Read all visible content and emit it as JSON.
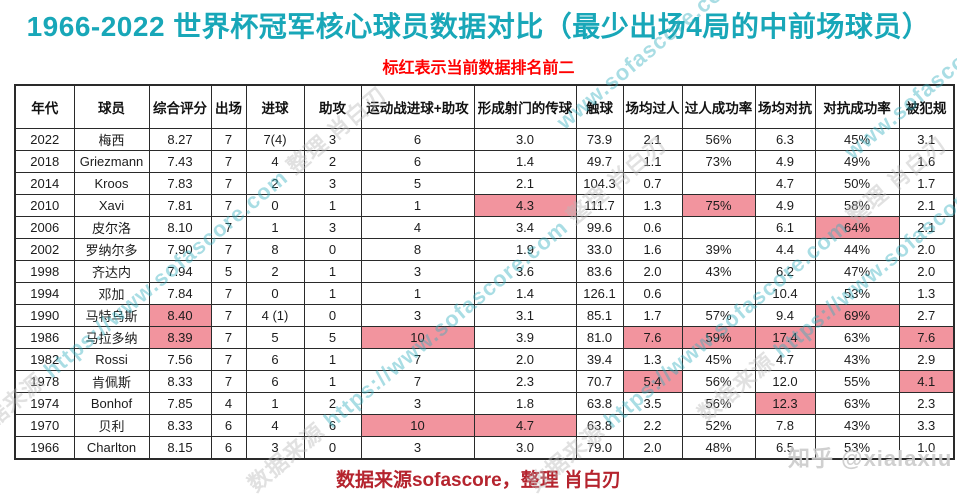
{
  "page": {
    "title": "1966-2022 世界杯冠军核心球员数据对比（最少出场4局的中前场球员）",
    "subtitle": "标红表示当前数据排名前二",
    "footer": "数据来源sofascore，整理 肖白刃"
  },
  "colors": {
    "title_teal": "#18a7b8",
    "subtitle_red": "#ff0000",
    "footer_red": "#b5242e",
    "highlight_pink": "#f2949e",
    "border_dark": "#2a2a2a",
    "watermark_teal": "#35b0bf",
    "watermark_gray": "#b9b9b9"
  },
  "watermark": {
    "site": "www.sofascore.com",
    "band_prefix": "数据来源",
    "band_url": "https://www.sofascore.com",
    "band_middle": "整理",
    "band_author": "肖白刃",
    "zhihu": "知乎 @xialaxiu"
  },
  "table": {
    "headers": [
      "年代",
      "球员",
      "综合评分",
      "出场",
      "进球",
      "助攻",
      "运动战进球+助攻",
      "形成射门的传球",
      "触球",
      "场均过人",
      "过人成功率",
      "场均对抗",
      "对抗成功率",
      "被犯规"
    ],
    "rows": [
      {
        "cells": [
          "2022",
          "梅西",
          "8.27",
          "7",
          "7(4)",
          "3",
          "6",
          "3.0",
          "73.9",
          "2.1",
          "56%",
          "6.3",
          "45%",
          "3.1"
        ],
        "highlights": []
      },
      {
        "cells": [
          "2018",
          "Griezmann",
          "7.43",
          "7",
          "4",
          "2",
          "6",
          "1.4",
          "49.7",
          "1.1",
          "73%",
          "4.9",
          "49%",
          "1.6"
        ],
        "highlights": []
      },
      {
        "cells": [
          "2014",
          "Kroos",
          "7.83",
          "7",
          "2",
          "3",
          "5",
          "2.1",
          "104.3",
          "0.7",
          "",
          "4.7",
          "50%",
          "1.7"
        ],
        "highlights": []
      },
      {
        "cells": [
          "2010",
          "Xavi",
          "7.81",
          "7",
          "0",
          "1",
          "1",
          "4.3",
          "111.7",
          "1.3",
          "75%",
          "4.9",
          "58%",
          "2.1"
        ],
        "highlights": [
          7,
          10
        ]
      },
      {
        "cells": [
          "2006",
          "皮尔洛",
          "8.10",
          "7",
          "1",
          "3",
          "4",
          "3.4",
          "99.6",
          "0.6",
          "",
          "6.1",
          "64%",
          "2.1"
        ],
        "highlights": [
          12
        ]
      },
      {
        "cells": [
          "2002",
          "罗纳尔多",
          "7.90",
          "7",
          "8",
          "0",
          "8",
          "1.9",
          "33.0",
          "1.6",
          "39%",
          "4.4",
          "44%",
          "2.0"
        ],
        "highlights": []
      },
      {
        "cells": [
          "1998",
          "齐达内",
          "7.94",
          "5",
          "2",
          "1",
          "3",
          "3.6",
          "83.6",
          "2.0",
          "43%",
          "6.2",
          "47%",
          "2.0"
        ],
        "highlights": []
      },
      {
        "cells": [
          "1994",
          "邓加",
          "7.84",
          "7",
          "0",
          "1",
          "1",
          "1.4",
          "126.1",
          "0.6",
          "",
          "10.4",
          "53%",
          "1.3"
        ],
        "highlights": []
      },
      {
        "cells": [
          "1990",
          "马特乌斯",
          "8.40",
          "7",
          "4 (1)",
          "0",
          "3",
          "3.1",
          "85.1",
          "1.7",
          "57%",
          "9.4",
          "69%",
          "2.7"
        ],
        "highlights": [
          2,
          12
        ]
      },
      {
        "cells": [
          "1986",
          "马拉多纳",
          "8.39",
          "7",
          "5",
          "5",
          "10",
          "3.9",
          "81.0",
          "7.6",
          "59%",
          "17.4",
          "63%",
          "7.6"
        ],
        "highlights": [
          2,
          6,
          9,
          10,
          11,
          13
        ]
      },
      {
        "cells": [
          "1982",
          "Rossi",
          "7.56",
          "7",
          "6",
          "1",
          "7",
          "2.0",
          "39.4",
          "1.3",
          "45%",
          "4.7",
          "43%",
          "2.9"
        ],
        "highlights": []
      },
      {
        "cells": [
          "1978",
          "肯佩斯",
          "8.33",
          "7",
          "6",
          "1",
          "7",
          "2.3",
          "70.7",
          "5.4",
          "56%",
          "12.0",
          "55%",
          "4.1"
        ],
        "highlights": [
          9,
          13
        ]
      },
      {
        "cells": [
          "1974",
          "Bonhof",
          "7.85",
          "4",
          "1",
          "2",
          "3",
          "1.8",
          "63.8",
          "3.5",
          "56%",
          "12.3",
          "63%",
          "2.3"
        ],
        "highlights": [
          11
        ]
      },
      {
        "cells": [
          "1970",
          "贝利",
          "8.33",
          "6",
          "4",
          "6",
          "10",
          "4.7",
          "63.8",
          "2.2",
          "52%",
          "7.8",
          "43%",
          "3.3"
        ],
        "highlights": [
          6,
          7
        ]
      },
      {
        "cells": [
          "1966",
          "Charlton",
          "8.15",
          "6",
          "3",
          "0",
          "3",
          "3.0",
          "79.0",
          "2.0",
          "48%",
          "6.5",
          "53%",
          "1.0"
        ],
        "highlights": []
      }
    ]
  }
}
